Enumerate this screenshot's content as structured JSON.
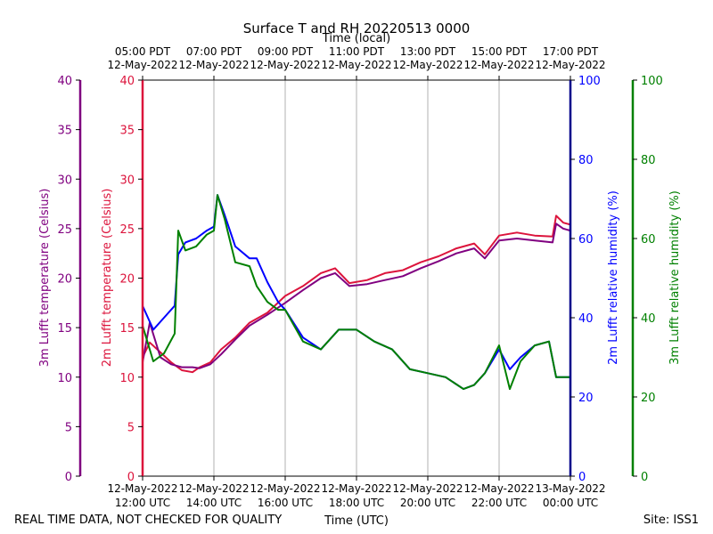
{
  "chart_data": {
    "type": "line",
    "title": "Surface T and RH 20220513 0000",
    "top_axis_label": "Time (local)",
    "xlabel": "Time (UTC)",
    "footer_left": "REAL TIME DATA, NOT CHECKED FOR QUALITY",
    "footer_right": "Site: ISS1",
    "x_range_hours_utc": [
      12,
      24
    ],
    "bottom_ticks": [
      {
        "h": 12,
        "line1": "12-May-2022",
        "line2": "12:00 UTC"
      },
      {
        "h": 14,
        "line1": "12-May-2022",
        "line2": "14:00 UTC"
      },
      {
        "h": 16,
        "line1": "12-May-2022",
        "line2": "16:00 UTC"
      },
      {
        "h": 18,
        "line1": "12-May-2022",
        "line2": "18:00 UTC"
      },
      {
        "h": 20,
        "line1": "12-May-2022",
        "line2": "20:00 UTC"
      },
      {
        "h": 22,
        "line1": "12-May-2022",
        "line2": "22:00 UTC"
      },
      {
        "h": 24,
        "line1": "13-May-2022",
        "line2": "00:00 UTC"
      }
    ],
    "top_ticks": [
      {
        "h": 12,
        "line1": "05:00 PDT",
        "line2": "12-May-2022"
      },
      {
        "h": 14,
        "line1": "07:00 PDT",
        "line2": "12-May-2022"
      },
      {
        "h": 16,
        "line1": "09:00 PDT",
        "line2": "12-May-2022"
      },
      {
        "h": 18,
        "line1": "11:00 PDT",
        "line2": "12-May-2022"
      },
      {
        "h": 20,
        "line1": "13:00 PDT",
        "line2": "12-May-2022"
      },
      {
        "h": 22,
        "line1": "15:00 PDT",
        "line2": "12-May-2022"
      },
      {
        "h": 24,
        "line1": "17:00 PDT",
        "line2": "12-May-2022"
      }
    ],
    "axes": {
      "temp3m": {
        "label": "3m Lufft temperature (Celsius)",
        "ylim": [
          0,
          40
        ],
        "ticks": [
          0,
          5,
          10,
          15,
          20,
          25,
          30,
          35,
          40
        ],
        "color": "#800080"
      },
      "temp2m": {
        "label": "2m Lufft temperature (Celsius)",
        "ylim": [
          0,
          40
        ],
        "ticks": [
          0,
          5,
          10,
          15,
          20,
          25,
          30,
          35,
          40
        ],
        "color": "#dc143c"
      },
      "rh2m": {
        "label": "2m Lufft relative humidity (%)",
        "ylim": [
          0,
          100
        ],
        "ticks": [
          0,
          20,
          40,
          60,
          80,
          100
        ],
        "color": "#0000ff"
      },
      "rh3m": {
        "label": "3m Lufft relative humidity (%)",
        "ylim": [
          0,
          100
        ],
        "ticks": [
          0,
          20,
          40,
          60,
          80,
          100
        ],
        "color": "#008000"
      }
    },
    "series": [
      {
        "name": "2m temperature",
        "axis": "temp2m",
        "color": "#dc143c",
        "x": [
          12.0,
          12.2,
          12.5,
          12.8,
          13.1,
          13.4,
          13.6,
          13.9,
          14.2,
          14.6,
          15.0,
          15.5,
          16.0,
          16.5,
          17.0,
          17.4,
          17.8,
          18.3,
          18.8,
          19.3,
          19.8,
          20.3,
          20.8,
          21.3,
          21.6,
          22.0,
          22.5,
          23.0,
          23.5,
          23.6,
          23.8,
          24.0
        ],
        "values": [
          12.0,
          13.5,
          12.5,
          11.5,
          10.7,
          10.5,
          11.0,
          11.5,
          12.8,
          14.0,
          15.5,
          16.5,
          18.2,
          19.2,
          20.5,
          21.0,
          19.5,
          19.8,
          20.5,
          20.8,
          21.6,
          22.2,
          23.0,
          23.5,
          22.4,
          24.3,
          24.6,
          24.3,
          24.2,
          26.3,
          25.6,
          25.4
        ]
      },
      {
        "name": "3m temperature",
        "axis": "temp3m",
        "color": "#800080",
        "x": [
          12.0,
          12.2,
          12.5,
          12.8,
          13.1,
          13.4,
          13.6,
          13.9,
          14.2,
          14.6,
          15.0,
          15.5,
          16.0,
          16.5,
          17.0,
          17.4,
          17.8,
          18.3,
          18.8,
          19.3,
          19.8,
          20.3,
          20.8,
          21.3,
          21.6,
          22.0,
          22.5,
          23.0,
          23.5,
          23.6,
          23.8,
          24.0
        ],
        "values": [
          11.5,
          15.5,
          12.0,
          11.3,
          11.0,
          11.0,
          10.9,
          11.3,
          12.3,
          13.8,
          15.2,
          16.3,
          17.5,
          18.8,
          20.0,
          20.5,
          19.2,
          19.4,
          19.8,
          20.2,
          21.0,
          21.7,
          22.5,
          23.0,
          22.0,
          23.8,
          24.0,
          23.8,
          23.6,
          25.5,
          25.0,
          24.8
        ]
      },
      {
        "name": "2m relative humidity",
        "axis": "rh2m",
        "color": "#0000ff",
        "x": [
          12.0,
          12.3,
          12.6,
          12.9,
          13.0,
          13.2,
          13.5,
          13.8,
          14.0,
          14.1,
          14.3,
          14.6,
          15.0,
          15.2,
          15.5,
          15.8,
          16.0,
          16.5,
          17.0,
          17.5,
          18.0,
          18.5,
          19.0,
          19.5,
          20.0,
          20.5,
          21.0,
          21.3,
          21.6,
          22.0,
          22.3,
          22.6,
          23.0,
          23.4,
          23.6,
          24.0
        ],
        "values": [
          43,
          37,
          40,
          43,
          56,
          59,
          60,
          62,
          63,
          71,
          66,
          58,
          55,
          55,
          49,
          44,
          42,
          35,
          32,
          37,
          37,
          34,
          32,
          27,
          26,
          25,
          22,
          23,
          26,
          32,
          27,
          30,
          33,
          34,
          25,
          25
        ]
      },
      {
        "name": "3m relative humidity",
        "axis": "rh3m",
        "color": "#008000",
        "x": [
          12.0,
          12.3,
          12.6,
          12.9,
          13.0,
          13.2,
          13.5,
          13.8,
          14.0,
          14.1,
          14.3,
          14.6,
          15.0,
          15.2,
          15.5,
          15.8,
          16.0,
          16.5,
          17.0,
          17.5,
          18.0,
          18.5,
          19.0,
          19.5,
          20.0,
          20.5,
          21.0,
          21.3,
          21.6,
          22.0,
          22.3,
          22.6,
          23.0,
          23.4,
          23.6,
          24.0
        ],
        "values": [
          38,
          29,
          31,
          36,
          62,
          57,
          58,
          61,
          62,
          71,
          65,
          54,
          53,
          48,
          44,
          42,
          42,
          34,
          32,
          37,
          37,
          34,
          32,
          27,
          26,
          25,
          22,
          23,
          26,
          33,
          22,
          29,
          33,
          34,
          25,
          25
        ]
      }
    ]
  }
}
